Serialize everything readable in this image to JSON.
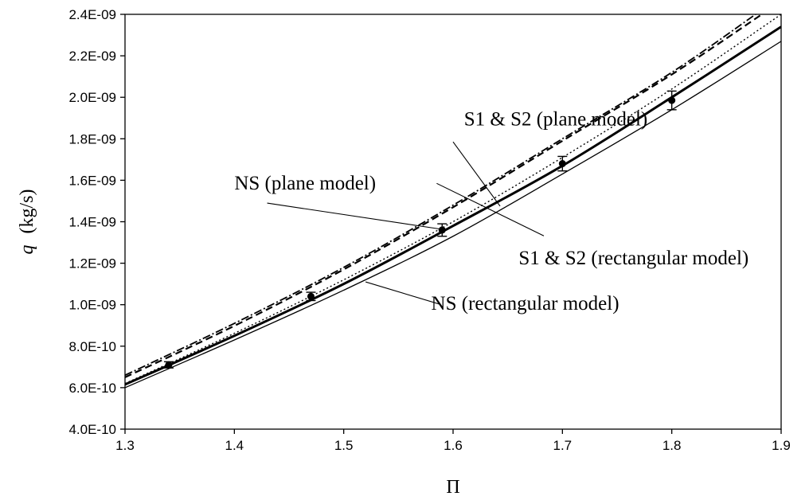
{
  "chart_data": {
    "type": "line",
    "title": "",
    "xlabel": "Π",
    "ylabel_var": "q",
    "ylabel_unit": "(kg/s)",
    "xlim": [
      1.3,
      1.9
    ],
    "ylim": [
      4e-10,
      2.4e-09
    ],
    "grid": false,
    "legend": "none",
    "xticks": [
      "1.3",
      "1.4",
      "1.5",
      "1.6",
      "1.7",
      "1.8",
      "1.9"
    ],
    "yticks": [
      "4.0E-10",
      "6.0E-10",
      "8.0E-10",
      "1.0E-09",
      "1.2E-09",
      "1.4E-09",
      "1.6E-09",
      "1.8E-09",
      "2.0E-09",
      "2.2E-09",
      "2.4E-09"
    ],
    "series": [
      {
        "key": "ns_rect",
        "style": "thin-solid",
        "x": [
          1.3,
          1.4,
          1.5,
          1.6,
          1.7,
          1.8,
          1.9
        ],
        "y": [
          6e-10,
          8.3e-10,
          1.07e-09,
          1.33e-09,
          1.63e-09,
          1.94e-09,
          2.27e-09
        ]
      },
      {
        "key": "ns_plane",
        "style": "thick-solid",
        "x": [
          1.3,
          1.4,
          1.5,
          1.6,
          1.7,
          1.8,
          1.9
        ],
        "y": [
          6.15e-10,
          8.5e-10,
          1.1e-09,
          1.38e-09,
          1.67e-09,
          2e-09,
          2.34e-09
        ]
      },
      {
        "key": "s1s2_rect",
        "style": "dotted",
        "x": [
          1.3,
          1.4,
          1.5,
          1.6,
          1.7,
          1.8,
          1.9
        ],
        "y": [
          6.2e-10,
          8.62e-10,
          1.12e-09,
          1.4e-09,
          1.71e-09,
          2.04e-09,
          2.4e-09
        ]
      },
      {
        "key": "s1s2_plane_a",
        "style": "dashed",
        "x": [
          1.3,
          1.4,
          1.5,
          1.6,
          1.7,
          1.8,
          1.888
        ],
        "y": [
          6.5e-10,
          8.98e-10,
          1.17e-09,
          1.47e-09,
          1.79e-09,
          2.11e-09,
          2.42e-09
        ]
      },
      {
        "key": "s1s2_plane_b",
        "style": "dash-dot",
        "x": [
          1.3,
          1.4,
          1.5,
          1.6,
          1.7,
          1.8,
          1.882
        ],
        "y": [
          6.6e-10,
          9.1e-10,
          1.18e-09,
          1.48e-09,
          1.8e-09,
          2.12e-09,
          2.42e-09
        ]
      }
    ],
    "experimental": {
      "x": [
        1.34,
        1.47,
        1.59,
        1.7,
        1.8
      ],
      "y": [
        7.1e-10,
        1.04e-09,
        1.36e-09,
        1.68e-09,
        1.985e-09
      ],
      "err": [
        1.5e-11,
        2e-11,
        3e-11,
        3.5e-11,
        4.5e-11
      ]
    },
    "annotations": [
      {
        "text": "S1 & S2 (plane model)",
        "pos": [
          1.61,
          1.865e-09
        ],
        "target": [
          1.643,
          1.475e-09
        ],
        "from": [
          1.6,
          1.785e-09
        ]
      },
      {
        "text": "NS (plane model)",
        "pos": [
          1.4,
          1.555e-09
        ],
        "target": [
          1.588,
          1.365e-09
        ],
        "from": [
          1.43,
          1.49e-09
        ]
      },
      {
        "text": "S1 & S2 (rectangular model)",
        "pos": [
          1.66,
          1.195e-09
        ],
        "target": [
          1.585,
          1.585e-09
        ],
        "from": [
          1.683,
          1.332e-09
        ]
      },
      {
        "text": "NS (rectangular model)",
        "pos": [
          1.58,
          9.75e-10
        ],
        "target": [
          1.52,
          1.11e-09
        ],
        "from": [
          1.588,
          1.002e-09
        ]
      }
    ]
  }
}
